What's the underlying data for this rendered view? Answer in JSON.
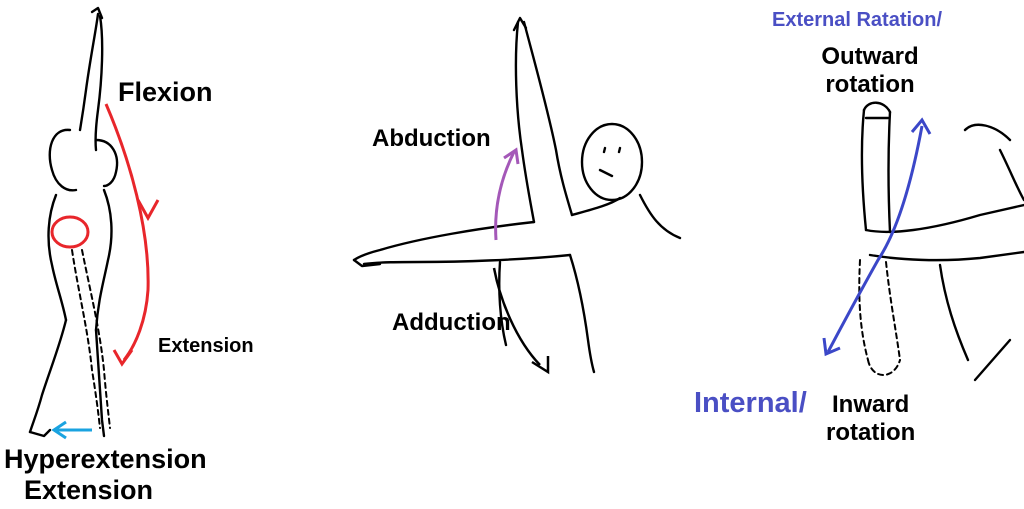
{
  "colors": {
    "flexion_arrow": "#e8262b",
    "hyperextension_arrow": "#1aa3e0",
    "abduction_arrow": "#a458b8",
    "adduction_arrow": "#000000",
    "rotation_arrow": "#3b47c8",
    "rotation_text": "#4a4fc4"
  },
  "labels": {
    "flexion": "Flexion",
    "extension_small": "Extension",
    "hyperextension": "Hyperextension",
    "extension_bottom": "Extension",
    "abduction": "Abduction",
    "adduction": "Adduction",
    "external_rotation": "External Ratation/",
    "outward": "Outward",
    "rotation_top": "rotation",
    "internal": "Internal/",
    "inward": "Inward",
    "rotation_bottom": "rotation"
  }
}
